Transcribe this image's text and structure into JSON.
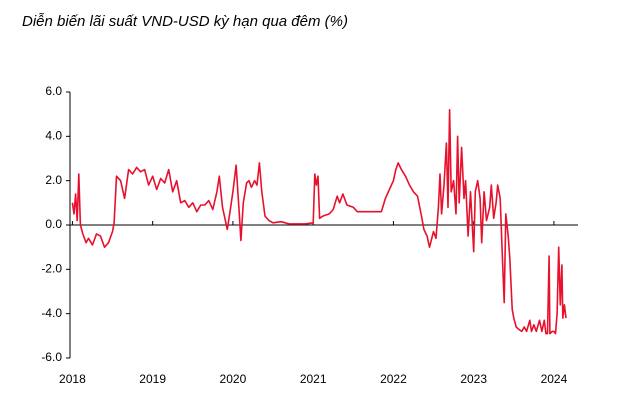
{
  "chart_data": {
    "type": "line",
    "title": "Diễn biến lãi suất VND-USD kỳ hạn qua đêm (%)",
    "color": "#e8112d",
    "x": [
      2018.0,
      2018.02,
      2018.04,
      2018.06,
      2018.08,
      2018.1,
      2018.13,
      2018.17,
      2018.2,
      2018.25,
      2018.3,
      2018.35,
      2018.4,
      2018.45,
      2018.5,
      2018.52,
      2018.55,
      2018.6,
      2018.65,
      2018.7,
      2018.75,
      2018.8,
      2018.85,
      2018.9,
      2018.95,
      2019.0,
      2019.05,
      2019.1,
      2019.15,
      2019.2,
      2019.25,
      2019.3,
      2019.35,
      2019.4,
      2019.45,
      2019.5,
      2019.55,
      2019.6,
      2019.65,
      2019.7,
      2019.75,
      2019.8,
      2019.83,
      2019.87,
      2019.9,
      2019.93,
      2019.96,
      2020.0,
      2020.04,
      2020.08,
      2020.1,
      2020.13,
      2020.17,
      2020.2,
      2020.23,
      2020.27,
      2020.3,
      2020.33,
      2020.36,
      2020.4,
      2020.45,
      2020.5,
      2020.6,
      2020.7,
      2020.8,
      2020.9,
      2021.0,
      2021.02,
      2021.04,
      2021.06,
      2021.08,
      2021.12,
      2021.2,
      2021.25,
      2021.3,
      2021.33,
      2021.37,
      2021.42,
      2021.5,
      2021.55,
      2021.65,
      2021.75,
      2021.85,
      2021.9,
      2021.95,
      2022.0,
      2022.03,
      2022.06,
      2022.1,
      2022.15,
      2022.2,
      2022.25,
      2022.3,
      2022.35,
      2022.38,
      2022.42,
      2022.45,
      2022.5,
      2022.53,
      2022.56,
      2022.58,
      2022.6,
      2022.63,
      2022.66,
      2022.68,
      2022.7,
      2022.72,
      2022.75,
      2022.78,
      2022.8,
      2022.82,
      2022.85,
      2022.88,
      2022.9,
      2022.93,
      2022.96,
      2023.0,
      2023.02,
      2023.05,
      2023.08,
      2023.1,
      2023.13,
      2023.16,
      2023.2,
      2023.22,
      2023.25,
      2023.28,
      2023.3,
      2023.33,
      2023.36,
      2023.38,
      2023.4,
      2023.43,
      2023.45,
      2023.48,
      2023.5,
      2023.53,
      2023.56,
      2023.6,
      2023.63,
      2023.66,
      2023.7,
      2023.72,
      2023.75,
      2023.78,
      2023.82,
      2023.85,
      2023.88,
      2023.9,
      2023.92,
      2023.94,
      2023.95,
      2023.98,
      2024.0,
      2024.02,
      2024.04,
      2024.06,
      2024.08,
      2024.1,
      2024.11,
      2024.13,
      2024.15
    ],
    "values": [
      1.0,
      0.5,
      1.4,
      0.2,
      2.3,
      0.0,
      -0.4,
      -0.8,
      -0.6,
      -0.9,
      -0.4,
      -0.5,
      -1.0,
      -0.8,
      -0.3,
      0.1,
      2.2,
      2.0,
      1.2,
      2.5,
      2.3,
      2.6,
      2.4,
      2.5,
      1.8,
      2.2,
      1.6,
      2.1,
      1.9,
      2.5,
      1.5,
      2.0,
      1.0,
      1.1,
      0.8,
      1.0,
      0.6,
      0.9,
      0.9,
      1.1,
      0.7,
      1.5,
      2.2,
      0.8,
      0.3,
      -0.2,
      0.5,
      1.5,
      2.7,
      0.5,
      -0.7,
      1.0,
      1.9,
      2.0,
      1.7,
      2.0,
      1.8,
      2.8,
      1.5,
      0.4,
      0.2,
      0.1,
      0.15,
      0.05,
      0.05,
      0.05,
      0.1,
      2.3,
      1.8,
      2.2,
      0.3,
      0.4,
      0.5,
      0.7,
      1.3,
      1.0,
      1.4,
      0.9,
      0.8,
      0.6,
      0.6,
      0.6,
      0.6,
      1.2,
      1.6,
      2.0,
      2.5,
      2.8,
      2.5,
      2.2,
      1.8,
      1.5,
      1.3,
      0.4,
      -0.2,
      -0.5,
      -1.0,
      -0.3,
      -0.6,
      0.8,
      2.3,
      0.5,
      1.8,
      3.7,
      0.8,
      5.2,
      1.5,
      2.0,
      0.5,
      4.0,
      1.0,
      3.5,
      1.2,
      2.0,
      -0.5,
      1.5,
      -1.2,
      1.5,
      2.0,
      1.2,
      -0.8,
      1.5,
      0.2,
      0.8,
      1.8,
      0.3,
      1.0,
      1.8,
      1.2,
      -1.7,
      -3.5,
      0.5,
      -0.5,
      -1.5,
      -3.8,
      -4.2,
      -4.6,
      -4.7,
      -4.8,
      -4.6,
      -4.8,
      -4.3,
      -4.8,
      -4.5,
      -4.8,
      -4.3,
      -4.8,
      -4.3,
      -4.9,
      -4.9,
      -1.4,
      -4.9,
      -4.8,
      -4.8,
      -4.9,
      -4.0,
      -1.0,
      -3.6,
      -1.8,
      -4.2,
      -3.6,
      -4.2
    ],
    "xlim": [
      2017.97,
      2024.3
    ],
    "xticks": [
      2018,
      2019,
      2020,
      2021,
      2022,
      2023,
      2024
    ],
    "ylim": [
      -6,
      6
    ],
    "yticks": [
      {
        "value": 6,
        "label": "6.0"
      },
      {
        "value": 4,
        "label": "4.0"
      },
      {
        "value": 2,
        "label": "2.0"
      },
      {
        "value": 0,
        "label": "0.0"
      },
      {
        "value": -2,
        "label": "-2.0"
      },
      {
        "value": -4,
        "label": "-4.0"
      },
      {
        "value": -6,
        "label": "-6.0"
      }
    ]
  }
}
